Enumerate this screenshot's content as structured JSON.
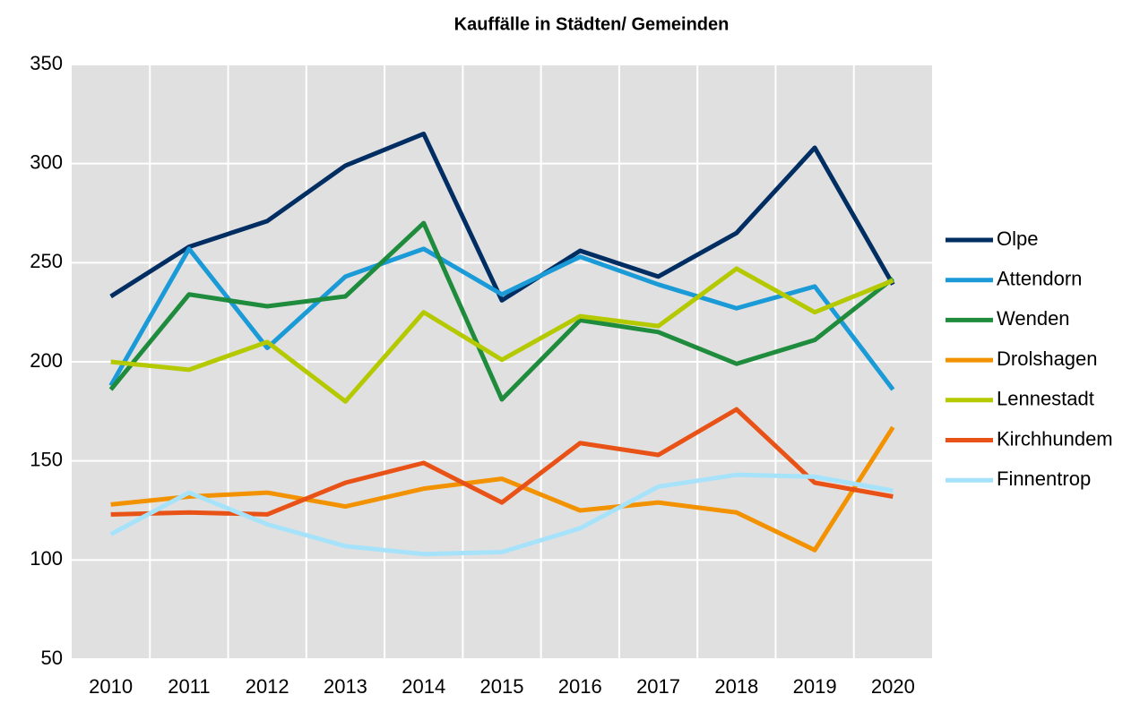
{
  "chart_data": {
    "type": "line",
    "title": "Kauffälle in Städten/ Gemeinden",
    "categories": [
      "2010",
      "2011",
      "2012",
      "2013",
      "2014",
      "2015",
      "2016",
      "2017",
      "2018",
      "2019",
      "2020"
    ],
    "ylim": [
      50,
      350
    ],
    "yticks": [
      50,
      100,
      150,
      200,
      250,
      300,
      350
    ],
    "grid": true,
    "legend": "right",
    "series": [
      {
        "name": "Olpe",
        "color": "#002d62",
        "values": [
          233,
          258,
          271,
          299,
          315,
          231,
          256,
          243,
          265,
          308,
          239
        ]
      },
      {
        "name": "Attendorn",
        "color": "#1a9ad6",
        "values": [
          188,
          257,
          207,
          243,
          257,
          234,
          253,
          239,
          227,
          238,
          186
        ]
      },
      {
        "name": "Wenden",
        "color": "#1e8c3c",
        "values": [
          186,
          234,
          228,
          233,
          270,
          181,
          221,
          215,
          199,
          211,
          242
        ]
      },
      {
        "name": "Drolshagen",
        "color": "#f39200",
        "values": [
          128,
          132,
          134,
          127,
          136,
          141,
          125,
          129,
          124,
          105,
          167
        ]
      },
      {
        "name": "Lennestadt",
        "color": "#b5c900",
        "values": [
          200,
          196,
          210,
          180,
          225,
          201,
          223,
          218,
          247,
          225,
          241
        ]
      },
      {
        "name": "Kirchhundem",
        "color": "#e85216",
        "values": [
          123,
          124,
          123,
          139,
          149,
          129,
          159,
          153,
          176,
          139,
          132
        ]
      },
      {
        "name": "Finnentrop",
        "color": "#a6e3fb",
        "values": [
          113,
          134,
          118,
          107,
          103,
          104,
          116,
          137,
          143,
          142,
          135
        ]
      }
    ]
  }
}
